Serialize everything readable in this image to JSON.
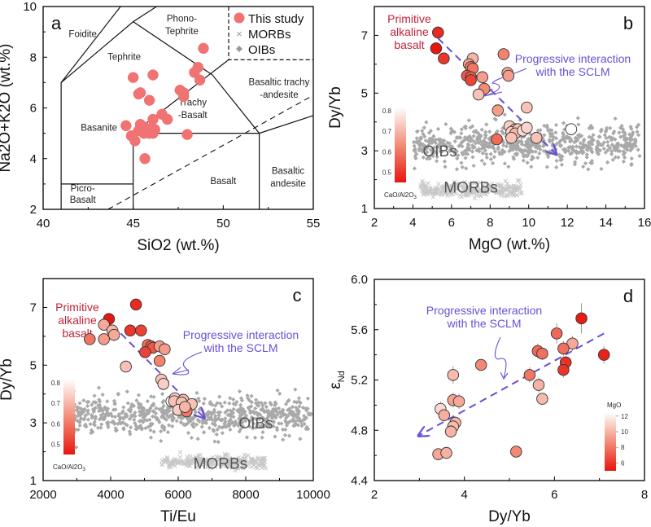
{
  "colors": {
    "dark_red": "#e8160f",
    "mid_red": "#ef5a3f",
    "light_red": "#f6b09c",
    "white_pt": "#ffffff",
    "tas_pt": "#f07272",
    "oib": "#a9a9a9",
    "morb": "#c8c8c8",
    "arrow": "#6a4fd6",
    "primitive_label": "#c0243a",
    "group_label": "#555555"
  },
  "chart_data": [
    {
      "id": "a",
      "type": "scatter",
      "panel_label": "a",
      "xlabel": "SiO2 (wt.%)",
      "ylabel": "Na2O+K2O (wt.%)",
      "xlim": [
        40,
        55
      ],
      "ylim": [
        2,
        10
      ],
      "xticks": [
        40,
        45,
        50,
        55
      ],
      "yticks": [
        2,
        4,
        6,
        8,
        10
      ],
      "legend": {
        "placement": "top-right",
        "entries": [
          {
            "label": "This study",
            "marker": "circle"
          },
          {
            "label": "MORBs",
            "marker": "x"
          },
          {
            "label": "OIBs",
            "marker": "diamond"
          }
        ]
      },
      "field_labels": [
        {
          "text": "Foidite",
          "x": 42.2,
          "y": 8.8
        },
        {
          "text": "Phono-",
          "x": 47.7,
          "y": 9.4
        },
        {
          "text": "Tephrite",
          "x": 47.7,
          "y": 8.9
        },
        {
          "text": "Tephrite",
          "x": 44.5,
          "y": 7.9
        },
        {
          "text": "Trachy",
          "x": 48.3,
          "y": 6.1
        },
        {
          "text": "-Basalt",
          "x": 48.3,
          "y": 5.6
        },
        {
          "text": "Basaltic trachy",
          "x": 53.1,
          "y": 6.9
        },
        {
          "text": "-andesite",
          "x": 53.1,
          "y": 6.4
        },
        {
          "text": "Basanite",
          "x": 43.1,
          "y": 5.1
        },
        {
          "text": "Picro-",
          "x": 42.2,
          "y": 2.7
        },
        {
          "text": "Basalt",
          "x": 42.2,
          "y": 2.25
        },
        {
          "text": "Basalt",
          "x": 50.0,
          "y": 3.0
        },
        {
          "text": "Basaltic",
          "x": 53.6,
          "y": 3.4
        },
        {
          "text": "andesite",
          "x": 53.6,
          "y": 2.9
        }
      ],
      "boundaries": [
        [
          [
            41,
            2
          ],
          [
            41,
            7
          ],
          [
            45,
            9.4
          ],
          [
            49.4,
            7.3
          ],
          [
            52,
            5
          ],
          [
            55,
            5.7
          ]
        ],
        [
          [
            45,
            9.4
          ],
          [
            46.3,
            10
          ]
        ],
        [
          [
            45,
            2
          ],
          [
            45,
            5
          ],
          [
            52,
            5
          ],
          [
            52,
            2
          ]
        ],
        [
          [
            41,
            3
          ],
          [
            45,
            3
          ]
        ],
        [
          [
            45,
            5
          ],
          [
            50.3,
            7.9
          ]
        ],
        [
          [
            41,
            7
          ],
          [
            44.3,
            10
          ]
        ]
      ],
      "alkaline_divide": [
        [
          43.6,
          2
        ],
        [
          55,
          6.5
        ]
      ],
      "points": [
        [
          48.9,
          8.35
        ],
        [
          48.6,
          7.6
        ],
        [
          48.4,
          7.4
        ],
        [
          48.7,
          7.1
        ],
        [
          45.0,
          7.2
        ],
        [
          46.1,
          7.3
        ],
        [
          45.4,
          6.6
        ],
        [
          45.3,
          6.55
        ],
        [
          45.9,
          6.3
        ],
        [
          47.6,
          6.7
        ],
        [
          47.8,
          6.6
        ],
        [
          47.8,
          6.45
        ],
        [
          46.6,
          5.75
        ],
        [
          46.9,
          5.55
        ],
        [
          46.1,
          5.55
        ],
        [
          44.6,
          5.3
        ],
        [
          45.4,
          5.35
        ],
        [
          45.6,
          5.25
        ],
        [
          46.0,
          5.2
        ],
        [
          46.2,
          5.15
        ],
        [
          45.3,
          5.1
        ],
        [
          45.9,
          5.0
        ],
        [
          45.6,
          5.0
        ],
        [
          45.8,
          5.1
        ],
        [
          46.1,
          5.0
        ],
        [
          44.9,
          4.9
        ],
        [
          45.1,
          4.7
        ],
        [
          48.0,
          4.95
        ],
        [
          45.65,
          4.0
        ]
      ]
    },
    {
      "id": "b",
      "type": "scatter",
      "panel_label": "b",
      "xlabel": "MgO (wt.%)",
      "ylabel": "Dy/Yb",
      "xlim": [
        2,
        16
      ],
      "ylim": [
        1,
        8
      ],
      "xticks": [
        2,
        4,
        6,
        8,
        10,
        12,
        14,
        16
      ],
      "yticks": [
        1,
        3,
        5,
        7
      ],
      "colorbar": {
        "label": "CaO/Al2O3",
        "ticks": [
          0.5,
          0.6,
          0.7,
          0.8
        ],
        "range": [
          0.45,
          0.82
        ]
      },
      "annotations": {
        "primitive": [
          "Primitive",
          "alkaline",
          "basalt"
        ],
        "progressive": [
          "Progressive interaction",
          "with the SCLM"
        ],
        "oib_label": "OIBs",
        "morb_label": "MORBs"
      },
      "trend_arrow": [
        [
          5.3,
          6.9
        ],
        [
          11.4,
          2.9
        ]
      ],
      "oib_cloud": {
        "x_range": [
          4,
          15.8
        ],
        "y_center": 3.2,
        "y_spread": 0.45,
        "count": 700
      },
      "morb_cloud": {
        "x_range": [
          4.4,
          9.7
        ],
        "y_center": 1.65,
        "y_spread": 0.18,
        "count": 260
      },
      "points": [
        {
          "x": 5.3,
          "y": 7.1,
          "c": 0.48
        },
        {
          "x": 5.2,
          "y": 6.55,
          "c": 0.45
        },
        {
          "x": 5.6,
          "y": 6.2,
          "c": 0.5
        },
        {
          "x": 7.1,
          "y": 6.2,
          "c": 0.7
        },
        {
          "x": 6.9,
          "y": 6.0,
          "c": 0.66
        },
        {
          "x": 7.0,
          "y": 5.9,
          "c": 0.62
        },
        {
          "x": 7.1,
          "y": 5.85,
          "c": 0.6
        },
        {
          "x": 6.8,
          "y": 5.6,
          "c": 0.55
        },
        {
          "x": 7.0,
          "y": 5.55,
          "c": 0.56
        },
        {
          "x": 7.0,
          "y": 5.45,
          "c": 0.52
        },
        {
          "x": 7.6,
          "y": 5.55,
          "c": 0.66
        },
        {
          "x": 7.7,
          "y": 5.15,
          "c": 0.63
        },
        {
          "x": 7.4,
          "y": 4.95,
          "c": 0.72
        },
        {
          "x": 8.7,
          "y": 6.35,
          "c": 0.62
        },
        {
          "x": 8.9,
          "y": 5.7,
          "c": 0.68
        },
        {
          "x": 8.95,
          "y": 5.6,
          "c": 0.66
        },
        {
          "x": 8.4,
          "y": 4.4,
          "c": 0.66
        },
        {
          "x": 9.9,
          "y": 4.5,
          "c": 0.72
        },
        {
          "x": 9.0,
          "y": 3.85,
          "c": 0.74
        },
        {
          "x": 9.3,
          "y": 3.75,
          "c": 0.7
        },
        {
          "x": 9.1,
          "y": 3.65,
          "c": 0.74
        },
        {
          "x": 9.45,
          "y": 3.75,
          "c": 0.72
        },
        {
          "x": 9.3,
          "y": 3.6,
          "c": 0.7
        },
        {
          "x": 9.7,
          "y": 3.7,
          "c": 0.76
        },
        {
          "x": 9.9,
          "y": 3.8,
          "c": 0.75
        },
        {
          "x": 9.1,
          "y": 3.45,
          "c": 0.72
        },
        {
          "x": 10.4,
          "y": 3.45,
          "c": 0.72
        },
        {
          "x": 8.35,
          "y": 3.4,
          "c": 0.58
        },
        {
          "x": 12.2,
          "y": 3.75,
          "c": 0.84
        }
      ]
    },
    {
      "id": "c",
      "type": "scatter",
      "panel_label": "c",
      "xlabel": "Ti/Eu",
      "ylabel": "Dy/Yb",
      "xlim": [
        2000,
        10000
      ],
      "ylim": [
        1,
        8
      ],
      "xticks": [
        2000,
        4000,
        6000,
        8000,
        10000
      ],
      "yticks": [
        1,
        3,
        5,
        7
      ],
      "colorbar": {
        "label": "CaO/Al2O3",
        "ticks": [
          0.5,
          0.6,
          0.7,
          0.8
        ],
        "range": [
          0.45,
          0.82
        ]
      },
      "annotations": {
        "primitive": [
          "Primitive",
          "alkaline",
          "basalt"
        ],
        "progressive": [
          "Progressive interaction",
          "with the SCLM"
        ],
        "oib_label": "OIBs",
        "morb_label": "MORBs"
      },
      "trend_arrow": [
        [
          4300,
          6.1
        ],
        [
          6750,
          3.2
        ]
      ],
      "oib_cloud": {
        "x_range": [
          2900,
          10000
        ],
        "y_center": 3.25,
        "y_spread": 0.45,
        "count": 700
      },
      "morb_cloud": {
        "x_range": [
          5500,
          8600
        ],
        "y_center": 1.65,
        "y_spread": 0.15,
        "count": 260
      },
      "points": [
        {
          "x": 4750,
          "y": 7.1,
          "c": 0.48
        },
        {
          "x": 3950,
          "y": 6.6,
          "c": 0.45
        },
        {
          "x": 3800,
          "y": 6.4,
          "c": 0.68
        },
        {
          "x": 4050,
          "y": 6.2,
          "c": 0.7
        },
        {
          "x": 4100,
          "y": 6.05,
          "c": 0.68
        },
        {
          "x": 3380,
          "y": 5.9,
          "c": 0.6
        },
        {
          "x": 3800,
          "y": 5.9,
          "c": 0.66
        },
        {
          "x": 4580,
          "y": 6.2,
          "c": 0.5
        },
        {
          "x": 4900,
          "y": 6.2,
          "c": 0.52
        },
        {
          "x": 5100,
          "y": 5.7,
          "c": 0.58
        },
        {
          "x": 5200,
          "y": 5.65,
          "c": 0.56
        },
        {
          "x": 5250,
          "y": 5.6,
          "c": 0.55
        },
        {
          "x": 5020,
          "y": 5.45,
          "c": 0.52
        },
        {
          "x": 5450,
          "y": 5.65,
          "c": 0.66
        },
        {
          "x": 5600,
          "y": 5.55,
          "c": 0.66
        },
        {
          "x": 5450,
          "y": 5.15,
          "c": 0.62
        },
        {
          "x": 4450,
          "y": 4.95,
          "c": 0.72
        },
        {
          "x": 5500,
          "y": 4.5,
          "c": 0.72
        },
        {
          "x": 5560,
          "y": 4.35,
          "c": 0.74
        },
        {
          "x": 5800,
          "y": 3.75,
          "c": 0.84
        },
        {
          "x": 5900,
          "y": 3.85,
          "c": 0.74
        },
        {
          "x": 5880,
          "y": 3.75,
          "c": 0.72
        },
        {
          "x": 6150,
          "y": 3.8,
          "c": 0.7
        },
        {
          "x": 6100,
          "y": 3.7,
          "c": 0.72
        },
        {
          "x": 6400,
          "y": 3.65,
          "c": 0.72
        },
        {
          "x": 6000,
          "y": 3.45,
          "c": 0.74
        },
        {
          "x": 6250,
          "y": 3.4,
          "c": 0.6
        },
        {
          "x": 6200,
          "y": 3.55,
          "c": 0.7
        }
      ]
    },
    {
      "id": "d",
      "type": "scatter",
      "panel_label": "d",
      "xlabel": "Dy/Yb",
      "ylabel": "εNd",
      "xlim": [
        2,
        8
      ],
      "ylim": [
        4.4,
        6.0
      ],
      "xticks": [
        2,
        4,
        6,
        8
      ],
      "yticks": [
        4.4,
        4.8,
        5.2,
        5.6,
        6.0
      ],
      "colorbar": {
        "label": "MgO",
        "ticks": [
          6,
          8,
          10,
          12
        ],
        "range": [
          5,
          12.5
        ]
      },
      "annotations": {
        "progressive": [
          "Progressive interaction",
          "with the SCLM"
        ]
      },
      "trend_arrow": [
        [
          7.1,
          5.57
        ],
        [
          3.0,
          4.76
        ]
      ],
      "points": [
        {
          "x": 6.6,
          "y": 5.69,
          "m": 5.2,
          "e": 0.12
        },
        {
          "x": 6.05,
          "y": 5.57,
          "m": 7.6,
          "e": 0.08
        },
        {
          "x": 6.4,
          "y": 5.49,
          "m": 9.6,
          "e": 0.06
        },
        {
          "x": 6.2,
          "y": 5.45,
          "m": 7.8,
          "e": 0.06
        },
        {
          "x": 5.63,
          "y": 5.43,
          "m": 7.6,
          "e": 0.06
        },
        {
          "x": 5.73,
          "y": 5.41,
          "m": 7.8,
          "e": 0.05
        },
        {
          "x": 7.1,
          "y": 5.4,
          "m": 5.4,
          "e": 0.07
        },
        {
          "x": 4.37,
          "y": 5.32,
          "m": 8.6,
          "e": 0.0
        },
        {
          "x": 6.25,
          "y": 5.34,
          "m": 5.8,
          "e": 0.0
        },
        {
          "x": 6.2,
          "y": 5.28,
          "m": 5.9,
          "e": 0.06
        },
        {
          "x": 5.45,
          "y": 5.24,
          "m": 8.0,
          "e": 0.06
        },
        {
          "x": 3.75,
          "y": 5.24,
          "m": 10.2,
          "e": 0.07
        },
        {
          "x": 5.65,
          "y": 5.16,
          "m": 10.0,
          "e": 0.06
        },
        {
          "x": 3.75,
          "y": 5.04,
          "m": 9.4,
          "e": 0.06
        },
        {
          "x": 3.88,
          "y": 5.03,
          "m": 9.6,
          "e": 0.06
        },
        {
          "x": 5.73,
          "y": 5.05,
          "m": 10.2,
          "e": 0.0
        },
        {
          "x": 3.47,
          "y": 4.97,
          "m": 11.2,
          "e": 0.06
        },
        {
          "x": 3.55,
          "y": 4.92,
          "m": 9.8,
          "e": 0.0
        },
        {
          "x": 3.8,
          "y": 4.86,
          "m": 10.0,
          "e": 0.05
        },
        {
          "x": 3.75,
          "y": 4.83,
          "m": 10.2,
          "e": 0.05
        },
        {
          "x": 3.7,
          "y": 4.79,
          "m": 10.0,
          "e": 0.05
        },
        {
          "x": 3.42,
          "y": 4.61,
          "m": 9.6,
          "e": 0.0
        },
        {
          "x": 3.6,
          "y": 4.62,
          "m": 9.9,
          "e": 0.0
        },
        {
          "x": 5.15,
          "y": 4.63,
          "m": 8.6,
          "e": 0.0
        }
      ]
    }
  ]
}
